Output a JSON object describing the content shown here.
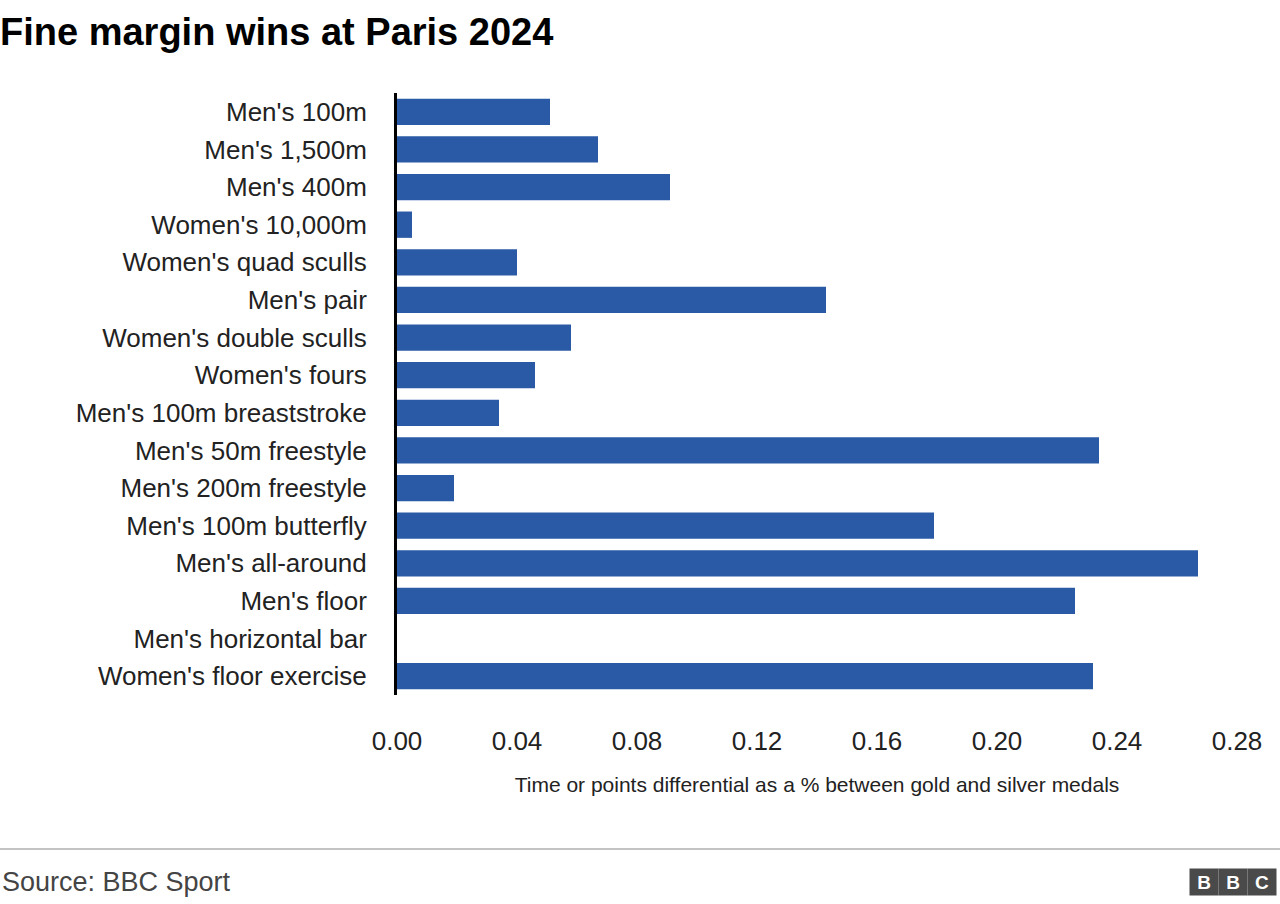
{
  "chart_data": {
    "type": "bar",
    "title": "Fine margin wins at Paris 2024",
    "orientation": "horizontal",
    "categories": [
      "Men's 100m",
      "Men's 1,500m",
      "Men's 400m",
      "Women's 10,000m",
      "Women's quad sculls",
      "Men's pair",
      "Women's double sculls",
      "Women's fours",
      "Men's 100m breaststroke",
      "Men's 50m freestyle",
      "Men's 200m freestyle",
      "Men's 100m butterfly",
      "Men's all-around",
      "Men's floor",
      "Men's horizontal bar",
      "Women's floor exercise"
    ],
    "values": [
      0.051,
      0.067,
      0.091,
      0.005,
      0.04,
      0.143,
      0.058,
      0.046,
      0.034,
      0.234,
      0.019,
      0.179,
      0.267,
      0.226,
      0,
      0.232
    ],
    "color": "#2a5aa5",
    "xlim": [
      0,
      0.28
    ],
    "xticks": [
      {
        "value": 0,
        "label": "0.00"
      },
      0.04,
      0.08,
      0.12,
      0.16,
      {
        "value": 0.2,
        "label": "0.20"
      },
      0.24,
      0.28
    ],
    "xlabel": "Time or points differential as a % between gold and silver medals",
    "grid": false,
    "source": "Source: BBC Sport",
    "logo": "BBC"
  }
}
